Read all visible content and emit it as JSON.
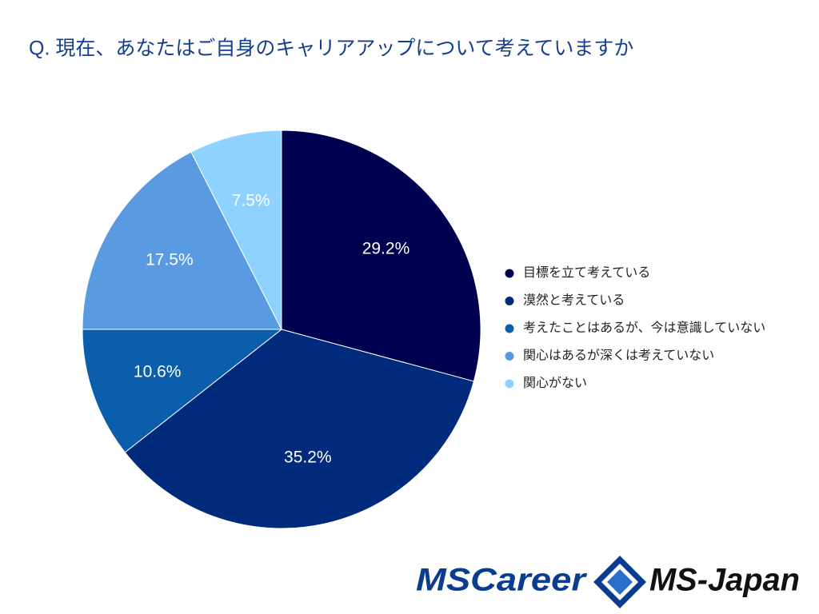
{
  "chart_data": {
    "type": "pie",
    "title": "Q. 現在、あなたはご自身のキャリアアップについて考えていますか",
    "categories": [
      "目標を立て考えている",
      "漠然と考えている",
      "考えたことはあるが、今は意識していない",
      "関心はあるが深くは考えていない",
      "関心がない"
    ],
    "values": [
      29.2,
      35.2,
      10.6,
      17.5,
      7.5
    ],
    "value_labels": [
      "29.2%",
      "35.2%",
      "10.6%",
      "17.5%",
      "7.5%"
    ],
    "colors": [
      "#000050",
      "#002a7c",
      "#0a5eab",
      "#5a9ae0",
      "#90d2ff"
    ],
    "legend": "right"
  },
  "footer": {
    "logos": [
      "MSCareer",
      "MS-Japan"
    ]
  }
}
